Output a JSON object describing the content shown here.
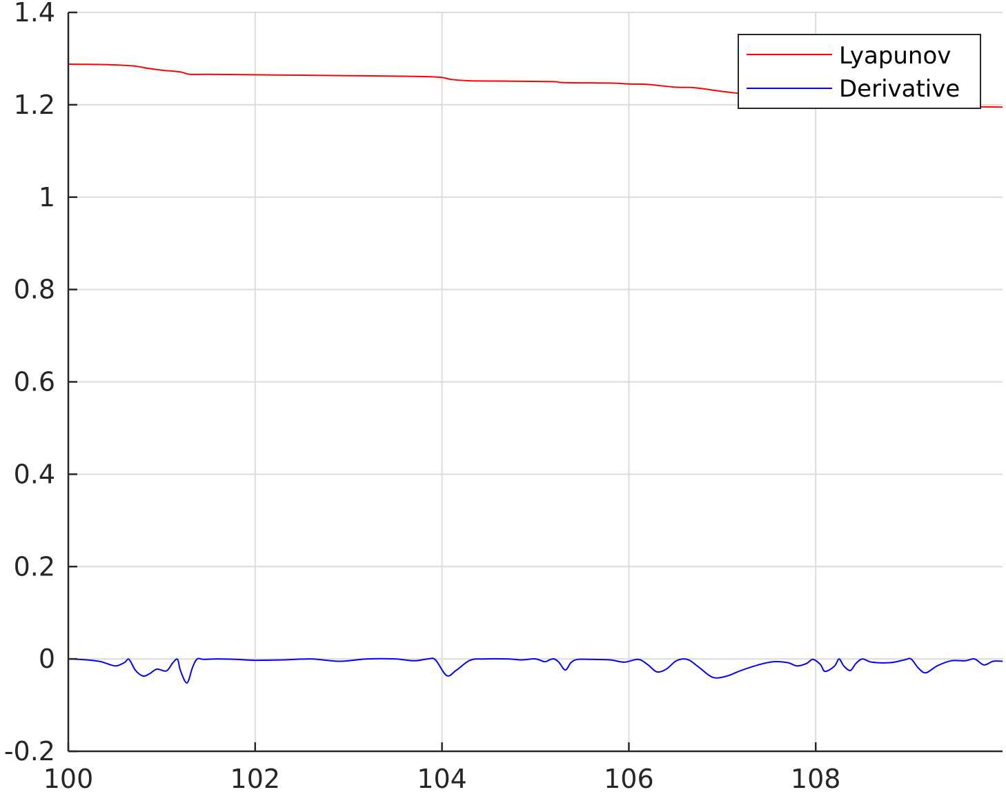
{
  "chart_data": {
    "type": "line",
    "title": "",
    "xlabel": "",
    "ylabel": "",
    "xlim": [
      100,
      110
    ],
    "ylim": [
      -0.2,
      1.4
    ],
    "grid": true,
    "legend_location": "top-right",
    "x_ticks": [
      100,
      102,
      104,
      106,
      108
    ],
    "x_tick_labels": [
      "100",
      "102",
      "104",
      "106",
      "108"
    ],
    "y_ticks": [
      -0.2,
      0,
      0.2,
      0.4,
      0.6,
      0.8,
      1,
      1.2,
      1.4
    ],
    "y_tick_labels": [
      "-0.2",
      "0",
      "0.2",
      "0.4",
      "0.6",
      "0.8",
      "1",
      "1.2",
      "1.4"
    ],
    "series": [
      {
        "name": "Lyapunov",
        "color": "#ff0000",
        "x": [
          100,
          100.4,
          100.7,
          100.85,
          101.0,
          101.2,
          101.3,
          101.5,
          102.0,
          102.5,
          103.0,
          103.5,
          103.95,
          104.1,
          104.3,
          104.8,
          105.2,
          105.3,
          105.8,
          106.0,
          106.2,
          106.5,
          106.7,
          107.0,
          107.3,
          107.6,
          107.8,
          108.1,
          108.5,
          108.8,
          109.0,
          109.3,
          109.6,
          110.0
        ],
        "values": [
          1.288,
          1.287,
          1.284,
          1.279,
          1.275,
          1.271,
          1.266,
          1.266,
          1.265,
          1.264,
          1.263,
          1.262,
          1.26,
          1.255,
          1.252,
          1.251,
          1.25,
          1.248,
          1.247,
          1.245,
          1.244,
          1.238,
          1.237,
          1.229,
          1.222,
          1.218,
          1.215,
          1.212,
          1.208,
          1.203,
          1.2,
          1.197,
          1.196,
          1.195
        ]
      },
      {
        "name": "Derivative",
        "color": "#0000ff",
        "x": [
          100,
          100.2,
          100.35,
          100.5,
          100.6,
          100.65,
          100.72,
          100.8,
          100.87,
          100.95,
          101.05,
          101.12,
          101.17,
          101.2,
          101.27,
          101.33,
          101.38,
          101.45,
          101.6,
          101.8,
          102.0,
          102.3,
          102.6,
          102.9,
          103.2,
          103.5,
          103.7,
          103.85,
          103.93,
          104.05,
          104.15,
          104.3,
          104.45,
          104.7,
          104.85,
          105.0,
          105.1,
          105.15,
          105.2,
          105.25,
          105.32,
          105.38,
          105.45,
          105.6,
          105.8,
          105.95,
          106.1,
          106.2,
          106.3,
          106.4,
          106.5,
          106.58,
          106.65,
          106.75,
          106.9,
          107.05,
          107.2,
          107.4,
          107.55,
          107.7,
          107.8,
          107.9,
          107.97,
          108.05,
          108.1,
          108.2,
          108.25,
          108.3,
          108.37,
          108.43,
          108.5,
          108.6,
          108.8,
          108.95,
          109.02,
          109.1,
          109.18,
          109.3,
          109.45,
          109.6,
          109.7,
          109.8,
          109.9,
          110.0
        ],
        "values": [
          0.0,
          -0.002,
          -0.006,
          -0.015,
          -0.008,
          -0.001,
          -0.025,
          -0.037,
          -0.032,
          -0.022,
          -0.026,
          -0.008,
          -0.001,
          -0.025,
          -0.052,
          -0.018,
          0.0,
          -0.001,
          0.0,
          -0.001,
          -0.003,
          -0.002,
          0.0,
          -0.005,
          0.0,
          0.0,
          -0.004,
          0.0,
          -0.002,
          -0.036,
          -0.025,
          -0.003,
          0.0,
          0.0,
          -0.002,
          0.0,
          -0.006,
          -0.002,
          0.0,
          -0.007,
          -0.024,
          -0.008,
          -0.001,
          -0.001,
          -0.002,
          -0.007,
          -0.001,
          -0.012,
          -0.028,
          -0.022,
          -0.005,
          0.0,
          -0.003,
          -0.018,
          -0.04,
          -0.037,
          -0.025,
          -0.012,
          -0.006,
          -0.008,
          -0.015,
          -0.01,
          -0.001,
          -0.012,
          -0.027,
          -0.016,
          0.0,
          -0.015,
          -0.025,
          -0.01,
          0.0,
          -0.007,
          -0.008,
          -0.002,
          0.0,
          -0.02,
          -0.03,
          -0.015,
          -0.004,
          -0.004,
          0.0,
          -0.013,
          -0.005,
          -0.005
        ]
      }
    ]
  }
}
